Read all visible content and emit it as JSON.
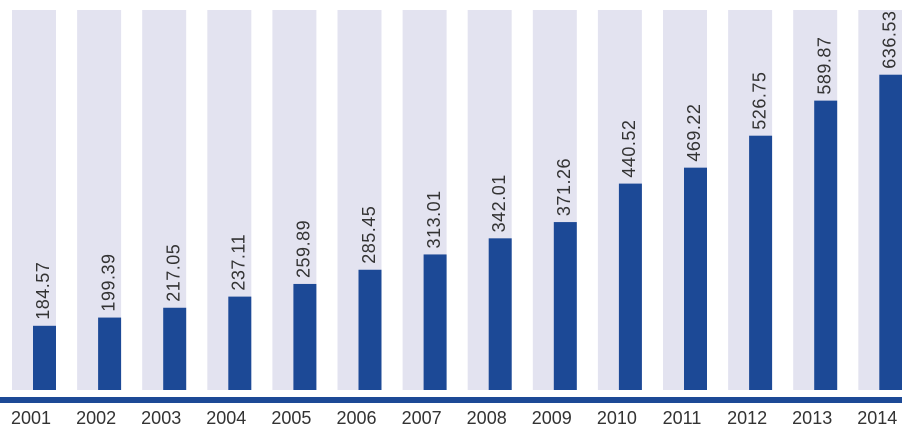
{
  "chart_data": {
    "type": "bar",
    "categories": [
      "2001",
      "2002",
      "2003",
      "2004",
      "2005",
      "2006",
      "2007",
      "2008",
      "2009",
      "2010",
      "2011",
      "2012",
      "2013",
      "2014"
    ],
    "values": [
      184.57,
      199.39,
      217.05,
      237.11,
      259.89,
      285.45,
      313.01,
      342.01,
      371.26,
      440.52,
      469.22,
      526.75,
      589.87,
      636.53
    ],
    "color": "#1c4996",
    "background_color": "#e3e3f0",
    "ylim": [
      69,
      753
    ]
  }
}
